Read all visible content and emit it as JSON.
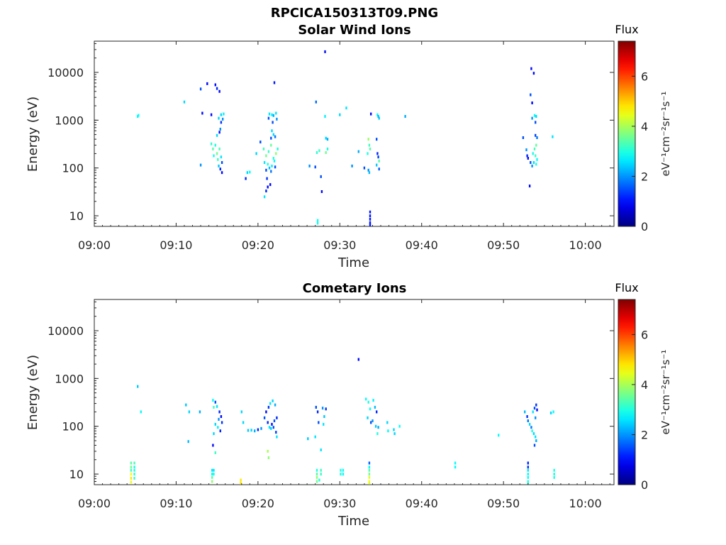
{
  "figure_title": "RPCICA150313T09.PNG",
  "colormap": "jet",
  "chart_data": [
    {
      "type": "heatmap",
      "title": "Solar Wind Ions",
      "xlabel": "Time",
      "ylabel": "Energy (eV)",
      "x_ticks": [
        "09:00",
        "09:10",
        "09:20",
        "09:30",
        "09:40",
        "09:50",
        "10:00"
      ],
      "x_range_min": [
        0,
        63.5
      ],
      "y_scale": "log",
      "ylim": [
        6,
        45000
      ],
      "y_ticks": [
        10,
        100,
        1000,
        10000
      ],
      "y_tick_labels": [
        "10",
        "100",
        "1000",
        "10000"
      ],
      "colorbar": {
        "label": "Flux",
        "unit": "eV⁻¹cm⁻²sr⁻¹s⁻¹",
        "range": [
          0,
          7.4
        ],
        "ticks": [
          "0",
          "2",
          "4",
          "6"
        ]
      },
      "points": [
        [
          5.3,
          1200,
          2.8
        ],
        [
          5.4,
          1260,
          2.8
        ],
        [
          11.0,
          2400,
          2.5
        ],
        [
          13.0,
          4500,
          1.5
        ],
        [
          13.8,
          5800,
          1.0
        ],
        [
          14.8,
          5500,
          1.0
        ],
        [
          15.0,
          4600,
          1.2
        ],
        [
          15.3,
          4000,
          1.0
        ],
        [
          13.2,
          1400,
          1.0
        ],
        [
          14.3,
          1300,
          1.0
        ],
        [
          15.5,
          1300,
          2.5
        ],
        [
          15.8,
          1350,
          2.7
        ],
        [
          15.2,
          1100,
          2.5
        ],
        [
          15.7,
          1050,
          2.0
        ],
        [
          15.5,
          900,
          1.3
        ],
        [
          15.4,
          650,
          2.0
        ],
        [
          15.3,
          560,
          1.0
        ],
        [
          15.0,
          480,
          2.5
        ],
        [
          14.3,
          320,
          3.1
        ],
        [
          14.5,
          250,
          3.4
        ],
        [
          14.8,
          300,
          3.0
        ],
        [
          15.0,
          200,
          3.6
        ],
        [
          15.3,
          250,
          3.3
        ],
        [
          14.6,
          180,
          2.9
        ],
        [
          15.1,
          150,
          3.2
        ],
        [
          15.5,
          170,
          2.6
        ],
        [
          15.6,
          130,
          1.5
        ],
        [
          15.2,
          110,
          2.4
        ],
        [
          15.4,
          95,
          1.2
        ],
        [
          15.6,
          80,
          1.0
        ],
        [
          13.0,
          115,
          2.0
        ],
        [
          18.7,
          80,
          2.5
        ],
        [
          19.0,
          82,
          2.8
        ],
        [
          18.5,
          60,
          1.2
        ],
        [
          19.8,
          200,
          2.5
        ],
        [
          20.3,
          350,
          1.5
        ],
        [
          20.7,
          250,
          3.3
        ],
        [
          21.0,
          180,
          3.6
        ],
        [
          21.3,
          220,
          3.2
        ],
        [
          21.6,
          300,
          3.5
        ],
        [
          21.9,
          160,
          3.1
        ],
        [
          22.2,
          200,
          3.8
        ],
        [
          22.4,
          250,
          3.0
        ],
        [
          20.8,
          130,
          2.6
        ],
        [
          21.2,
          120,
          3.0
        ],
        [
          21.7,
          110,
          2.7
        ],
        [
          22.0,
          140,
          2.8
        ],
        [
          21.4,
          100,
          2.3
        ],
        [
          21.0,
          90,
          1.5
        ],
        [
          21.6,
          85,
          1.8
        ],
        [
          22.1,
          105,
          1.5
        ],
        [
          21.1,
          60,
          1.3
        ],
        [
          21.5,
          45,
          1.0
        ],
        [
          21.2,
          40,
          1.0
        ],
        [
          21.0,
          33,
          1.2
        ],
        [
          20.8,
          25,
          2.6
        ],
        [
          21.4,
          1350,
          2.6
        ],
        [
          21.7,
          1300,
          2.7
        ],
        [
          21.9,
          1250,
          2.2
        ],
        [
          22.2,
          1400,
          2.6
        ],
        [
          21.3,
          1100,
          1.5
        ],
        [
          22.3,
          1050,
          2.0
        ],
        [
          21.8,
          900,
          1.5
        ],
        [
          21.7,
          600,
          2.5
        ],
        [
          21.9,
          500,
          2.5
        ],
        [
          22.1,
          450,
          1.8
        ],
        [
          21.6,
          420,
          1.5
        ],
        [
          22.0,
          6100,
          1.1
        ],
        [
          26.3,
          110,
          2.0
        ],
        [
          27.0,
          105,
          1.5
        ],
        [
          27.2,
          210,
          3.1
        ],
        [
          27.5,
          230,
          3.2
        ],
        [
          28.3,
          210,
          3.6
        ],
        [
          28.5,
          250,
          3.0
        ],
        [
          28.3,
          420,
          2.5
        ],
        [
          28.5,
          400,
          2.2
        ],
        [
          28.2,
          1200,
          2.7
        ],
        [
          27.1,
          2400,
          1.7
        ],
        [
          28.2,
          27000,
          1.0
        ],
        [
          27.7,
          66,
          1.5
        ],
        [
          27.8,
          32,
          1.0
        ],
        [
          27.3,
          7,
          2.9
        ],
        [
          27.3,
          8,
          2.9
        ],
        [
          30.0,
          1300,
          2.5
        ],
        [
          30.8,
          1800,
          2.6
        ],
        [
          31.5,
          110,
          2.0
        ],
        [
          32.3,
          220,
          2.2
        ],
        [
          33.0,
          100,
          1.5
        ],
        [
          33.8,
          1350,
          1.0
        ],
        [
          33.5,
          400,
          3.9
        ],
        [
          33.6,
          300,
          3.2
        ],
        [
          33.7,
          250,
          3.4
        ],
        [
          33.4,
          200,
          3.0
        ],
        [
          33.5,
          90,
          2.0
        ],
        [
          33.6,
          80,
          2.3
        ],
        [
          34.6,
          1300,
          2.8
        ],
        [
          34.8,
          1100,
          2.4
        ],
        [
          34.7,
          1200,
          2.3
        ],
        [
          34.5,
          400,
          1.5
        ],
        [
          34.6,
          200,
          1.2
        ],
        [
          34.7,
          170,
          1.4
        ],
        [
          34.8,
          140,
          3.4
        ],
        [
          34.5,
          115,
          2.4
        ],
        [
          34.8,
          95,
          1.6
        ],
        [
          33.7,
          12,
          1.1
        ],
        [
          33.7,
          10,
          1.1
        ],
        [
          33.7,
          8.5,
          1.1
        ],
        [
          33.7,
          7.2,
          1.1
        ],
        [
          33.7,
          6.5,
          1.1
        ],
        [
          38.0,
          1200,
          2.2
        ],
        [
          52.4,
          430,
          1.5
        ],
        [
          52.8,
          240,
          2.0
        ],
        [
          52.9,
          180,
          1.2
        ],
        [
          53.0,
          160,
          1.0
        ],
        [
          53.3,
          130,
          1.5
        ],
        [
          53.5,
          110,
          2.0
        ],
        [
          53.2,
          42,
          1.0
        ],
        [
          53.6,
          200,
          2.9
        ],
        [
          53.8,
          250,
          3.3
        ],
        [
          54.0,
          300,
          3.5
        ],
        [
          53.9,
          180,
          3.2
        ],
        [
          54.1,
          150,
          2.8
        ],
        [
          53.7,
          130,
          2.5
        ],
        [
          54.0,
          120,
          3.0
        ],
        [
          53.5,
          1100,
          2.0
        ],
        [
          53.8,
          1250,
          2.8
        ],
        [
          54.0,
          1200,
          2.5
        ],
        [
          53.9,
          900,
          1.5
        ],
        [
          53.3,
          3400,
          1.5
        ],
        [
          53.5,
          2300,
          1.0
        ],
        [
          53.9,
          480,
          1.4
        ],
        [
          54.1,
          430,
          1.8
        ],
        [
          53.4,
          12000,
          1.0
        ],
        [
          53.7,
          9600,
          1.0
        ],
        [
          56.0,
          450,
          2.6
        ]
      ]
    },
    {
      "type": "heatmap",
      "title": "Cometary Ions",
      "xlabel": "Time",
      "ylabel": "Energy (eV)",
      "x_ticks": [
        "09:00",
        "09:10",
        "09:20",
        "09:30",
        "09:40",
        "09:50",
        "10:00"
      ],
      "x_range_min": [
        0,
        63.5
      ],
      "y_scale": "log",
      "ylim": [
        6,
        45000
      ],
      "y_ticks": [
        10,
        100,
        1000,
        10000
      ],
      "y_tick_labels": [
        "10",
        "100",
        "1000",
        "10000"
      ],
      "colorbar": {
        "label": "Flux",
        "unit": "eV⁻¹cm⁻²sr⁻¹s⁻¹",
        "range": [
          0,
          7.4
        ],
        "ticks": [
          "0",
          "2",
          "4",
          "6"
        ]
      },
      "points": [
        [
          5.3,
          680,
          2.4
        ],
        [
          5.7,
          200,
          2.8
        ],
        [
          11.2,
          280,
          2.4
        ],
        [
          11.6,
          200,
          2.5
        ],
        [
          11.5,
          48,
          2.3
        ],
        [
          12.9,
          200,
          2.2
        ],
        [
          14.5,
          350,
          2.8
        ],
        [
          14.8,
          320,
          1.5
        ],
        [
          15.0,
          260,
          2.6
        ],
        [
          14.6,
          250,
          3.2
        ],
        [
          15.3,
          200,
          1.2
        ],
        [
          15.5,
          160,
          1.0
        ],
        [
          15.2,
          140,
          2.0
        ],
        [
          15.6,
          120,
          1.3
        ],
        [
          14.8,
          110,
          2.5
        ],
        [
          15.1,
          95,
          2.7
        ],
        [
          15.4,
          80,
          1.2
        ],
        [
          14.6,
          70,
          2.5
        ],
        [
          14.5,
          40,
          1.0
        ],
        [
          14.8,
          28,
          3.2
        ],
        [
          18.0,
          200,
          2.5
        ],
        [
          18.2,
          120,
          2.5
        ],
        [
          18.8,
          82,
          2.4
        ],
        [
          19.2,
          83,
          2.5
        ],
        [
          19.6,
          80,
          2.2
        ],
        [
          20.0,
          85,
          1.2
        ],
        [
          20.4,
          90,
          2.0
        ],
        [
          20.8,
          150,
          1.5
        ],
        [
          21.0,
          200,
          1.0
        ],
        [
          21.3,
          250,
          1.3
        ],
        [
          21.5,
          300,
          2.6
        ],
        [
          21.8,
          340,
          2.5
        ],
        [
          22.1,
          280,
          2.2
        ],
        [
          21.2,
          120,
          1.2
        ],
        [
          21.7,
          110,
          1.0
        ],
        [
          22.0,
          130,
          1.5
        ],
        [
          22.3,
          150,
          1.2
        ],
        [
          21.4,
          95,
          2.6
        ],
        [
          21.6,
          90,
          2.4
        ],
        [
          21.9,
          95,
          1.5
        ],
        [
          22.2,
          75,
          1.4
        ],
        [
          22.3,
          60,
          2.6
        ],
        [
          21.2,
          30,
          4.0
        ],
        [
          21.3,
          22,
          3.8
        ],
        [
          27.1,
          250,
          1.5
        ],
        [
          27.3,
          200,
          1.2
        ],
        [
          27.9,
          240,
          2.0
        ],
        [
          28.3,
          230,
          1.3
        ],
        [
          28.1,
          160,
          2.4
        ],
        [
          27.4,
          120,
          1.5
        ],
        [
          28.0,
          110,
          2.6
        ],
        [
          27.0,
          60,
          2.6
        ],
        [
          27.7,
          32,
          2.6
        ],
        [
          26.1,
          55,
          2.4
        ],
        [
          33.2,
          370,
          2.8
        ],
        [
          33.5,
          320,
          3.0
        ],
        [
          33.7,
          230,
          2.8
        ],
        [
          34.1,
          350,
          2.7
        ],
        [
          34.3,
          250,
          2.3
        ],
        [
          34.5,
          200,
          1.2
        ],
        [
          33.4,
          150,
          2.5
        ],
        [
          33.8,
          120,
          1.5
        ],
        [
          34.0,
          130,
          2.0
        ],
        [
          34.4,
          100,
          2.4
        ],
        [
          34.7,
          95,
          2.2
        ],
        [
          32.3,
          2500,
          1.0
        ],
        [
          34.6,
          70,
          3.0
        ],
        [
          35.8,
          120,
          2.5
        ],
        [
          35.9,
          80,
          2.8
        ],
        [
          36.6,
          85,
          2.5
        ],
        [
          36.7,
          70,
          2.5
        ],
        [
          37.3,
          100,
          2.8
        ],
        [
          49.4,
          65,
          2.8
        ],
        [
          52.6,
          200,
          2.3
        ],
        [
          52.9,
          160,
          1.3
        ],
        [
          53.0,
          130,
          1.8
        ],
        [
          53.2,
          110,
          2.5
        ],
        [
          53.4,
          95,
          1.8
        ],
        [
          53.5,
          80,
          3.0
        ],
        [
          53.7,
          70,
          2.5
        ],
        [
          53.9,
          60,
          2.6
        ],
        [
          54.0,
          50,
          2.2
        ],
        [
          53.8,
          40,
          1.5
        ],
        [
          53.6,
          200,
          2.6
        ],
        [
          53.8,
          240,
          1.5
        ],
        [
          54.0,
          280,
          1.3
        ],
        [
          54.1,
          220,
          1.0
        ],
        [
          53.9,
          150,
          2.0
        ],
        [
          56.1,
          200,
          2.8
        ],
        [
          55.8,
          190,
          2.5
        ],
        [
          4.5,
          17,
          3.4
        ],
        [
          4.5,
          14,
          3.6
        ],
        [
          4.5,
          12,
          3.2
        ],
        [
          4.5,
          10,
          4.6
        ],
        [
          4.5,
          8.2,
          4.8
        ],
        [
          4.5,
          6.8,
          4.5
        ],
        [
          4.9,
          17,
          3.3
        ],
        [
          4.9,
          14,
          3.0
        ],
        [
          4.9,
          12,
          3.0
        ],
        [
          4.9,
          10,
          3.1
        ],
        [
          4.9,
          8.2,
          3.2
        ],
        [
          14.4,
          12,
          2.6
        ],
        [
          14.4,
          10,
          2.8
        ],
        [
          14.4,
          8.5,
          3.4
        ],
        [
          14.4,
          7,
          3.8
        ],
        [
          14.6,
          12,
          2.6
        ],
        [
          14.6,
          10,
          3.0
        ],
        [
          17.9,
          7.5,
          4.8
        ],
        [
          17.9,
          6.5,
          4.8
        ],
        [
          27.2,
          12,
          3.0
        ],
        [
          27.2,
          10,
          3.4
        ],
        [
          27.2,
          8.5,
          3.8
        ],
        [
          27.2,
          7,
          3.6
        ],
        [
          27.7,
          12,
          3.2
        ],
        [
          27.7,
          10,
          3.2
        ],
        [
          27.5,
          7.5,
          3.0
        ],
        [
          30.1,
          12,
          3.0
        ],
        [
          30.1,
          10,
          3.0
        ],
        [
          30.4,
          12,
          2.8
        ],
        [
          30.4,
          10,
          2.8
        ],
        [
          33.6,
          17,
          1.6
        ],
        [
          33.6,
          14,
          2.8
        ],
        [
          33.6,
          12,
          3.4
        ],
        [
          33.6,
          10,
          3.6
        ],
        [
          33.6,
          8.5,
          4.4
        ],
        [
          33.6,
          7,
          4.6
        ],
        [
          33.6,
          6.5,
          4.4
        ],
        [
          44.1,
          17,
          2.8
        ],
        [
          44.1,
          14,
          2.8
        ],
        [
          53.0,
          17,
          1.2
        ],
        [
          53.0,
          14,
          1.3
        ],
        [
          53.0,
          12,
          2.6
        ],
        [
          53.0,
          10,
          2.8
        ],
        [
          53.0,
          8.5,
          2.8
        ],
        [
          53.0,
          7,
          3.0
        ],
        [
          53.0,
          6.5,
          3.0
        ],
        [
          56.2,
          12,
          3.0
        ],
        [
          56.2,
          10,
          3.0
        ],
        [
          56.2,
          8.5,
          3.0
        ]
      ]
    }
  ]
}
